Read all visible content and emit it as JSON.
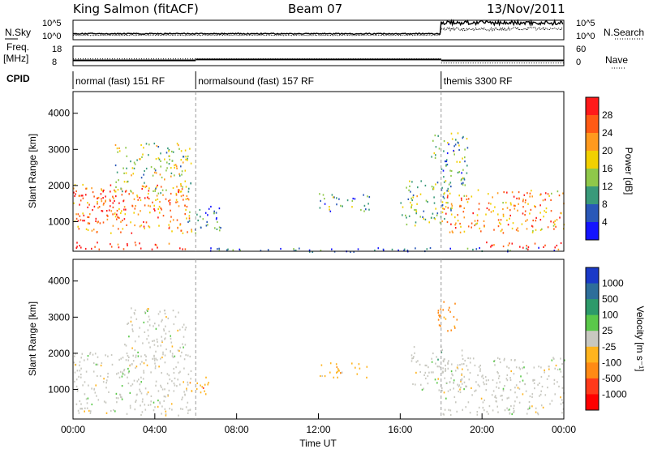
{
  "header": {
    "station": "King Salmon (fitACF)",
    "beam": "Beam 07",
    "date": "13/Nov/2011"
  },
  "summary_panel": {
    "left_labels": [
      "N.Sky",
      "Freq.",
      "[MHz]",
      "CPID"
    ],
    "right_labels": [
      "N.Search",
      "Nave"
    ],
    "noise_ticks": [
      "10^5",
      "10^0"
    ],
    "freq_ticks": [
      "18",
      "8"
    ],
    "nave_ticks": [
      "60",
      "0"
    ],
    "cpid_segments": [
      {
        "label": "normal (fast) 151 RF",
        "start_hour": 0,
        "end_hour": 6
      },
      {
        "label": "normalsound (fast) 157 RF",
        "start_hour": 6,
        "end_hour": 18
      },
      {
        "label": "themis 3300 RF",
        "start_hour": 18,
        "end_hour": 24
      }
    ]
  },
  "power_panel": {
    "ylabel": "Slant Range [km]",
    "colorbar_label": "Power [dB]",
    "colorbar_ticks": [
      "28",
      "24",
      "20",
      "16",
      "12",
      "8",
      "4"
    ],
    "colorbar_colors": [
      "#ff1a1a",
      "#ff5a14",
      "#ff9a1e",
      "#f2d000",
      "#8fc84a",
      "#3a9a7a",
      "#2a58b8",
      "#1414ff"
    ]
  },
  "velocity_panel": {
    "ylabel": "Slant Range [km]",
    "colorbar_label": "Velocity [m s⁻¹]",
    "colorbar_ticks": [
      "1000",
      "500",
      "100",
      "25",
      "-25",
      "-100",
      "-500",
      "-1000"
    ],
    "colorbar_colors": [
      "#1a3ac8",
      "#2d6e9a",
      "#2d9a6a",
      "#5ac84a",
      "#c8c8c0",
      "#ffb41e",
      "#ff8a14",
      "#ff3a1a",
      "#ff0000"
    ]
  },
  "x_axis": {
    "label": "Time UT",
    "ticks": [
      "00:00",
      "04:00",
      "08:00",
      "12:00",
      "16:00",
      "20:00",
      "00:00"
    ]
  },
  "chart_data": {
    "type": "heatmap",
    "x_unit": "hours UT",
    "xlim": [
      0,
      24
    ],
    "y_unit": "km",
    "ylim": [
      180,
      4600
    ],
    "y_ticks": [
      1000,
      2000,
      3000,
      4000
    ],
    "panels": [
      {
        "name": "Power",
        "unit": "dB",
        "clim": [
          0,
          30
        ],
        "regions": [
          {
            "t0": 0.0,
            "t1": 5.8,
            "r0": 700,
            "r1": 2050,
            "value": 22
          },
          {
            "t0": 0.0,
            "t1": 2.5,
            "r0": 1000,
            "r1": 1800,
            "value": 27
          },
          {
            "t0": 0.1,
            "t1": 5.8,
            "r0": 250,
            "r1": 450,
            "value": 28
          },
          {
            "t0": 2.0,
            "t1": 5.8,
            "r0": 1800,
            "r1": 3200,
            "value": 14
          },
          {
            "t0": 5.6,
            "t1": 7.2,
            "r0": 700,
            "r1": 1500,
            "value": 8
          },
          {
            "t0": 12.0,
            "t1": 14.5,
            "r0": 1300,
            "r1": 1800,
            "value": 9
          },
          {
            "t0": 16.0,
            "t1": 18.5,
            "r0": 900,
            "r1": 2200,
            "value": 12
          },
          {
            "t0": 17.5,
            "t1": 19.3,
            "r0": 2000,
            "r1": 3500,
            "value": 10
          },
          {
            "t0": 18.0,
            "t1": 24.0,
            "r0": 700,
            "r1": 1900,
            "value": 21
          },
          {
            "t0": 19.8,
            "t1": 24.0,
            "r0": 250,
            "r1": 450,
            "value": 28
          },
          {
            "t0": 6.0,
            "t1": 24.0,
            "r0": 180,
            "r1": 300,
            "value": 6
          }
        ]
      },
      {
        "name": "Velocity",
        "unit": "m/s",
        "clim": [
          -1000,
          1000
        ],
        "regions": [
          {
            "t0": 0.0,
            "t1": 5.8,
            "r0": 300,
            "r1": 2050,
            "value": 0
          },
          {
            "t0": 2.5,
            "t1": 5.5,
            "r0": 1800,
            "r1": 3300,
            "value": 0
          },
          {
            "t0": 5.5,
            "t1": 6.6,
            "r0": 800,
            "r1": 1400,
            "value": -300
          },
          {
            "t0": 12.0,
            "t1": 14.5,
            "r0": 1350,
            "r1": 1750,
            "value": -200
          },
          {
            "t0": 16.5,
            "t1": 19.2,
            "r0": 1000,
            "r1": 2200,
            "value": 60
          },
          {
            "t0": 18.0,
            "t1": 24.0,
            "r0": 300,
            "r1": 1900,
            "value": 0
          },
          {
            "t0": 17.8,
            "t1": 18.8,
            "r0": 2600,
            "r1": 3500,
            "value": -400
          }
        ]
      }
    ],
    "search_noise": {
      "before_18h": 1.2,
      "after_18h": 4.2
    },
    "sky_noise": {
      "before_18h": 0.8,
      "after_18h": 2.5
    },
    "freq_mhz": {
      "segments": [
        {
          "t0": 0,
          "t1": 6,
          "value": 10.5
        },
        {
          "t0": 6,
          "t1": 18,
          "value": 11.0
        },
        {
          "t0": 18,
          "t1": 24,
          "value": 10.5
        }
      ]
    },
    "nave": {
      "segments": [
        {
          "t0": 0,
          "t1": 18,
          "value": 20
        },
        {
          "t0": 18,
          "t1": 24,
          "value": 6
        }
      ]
    }
  }
}
